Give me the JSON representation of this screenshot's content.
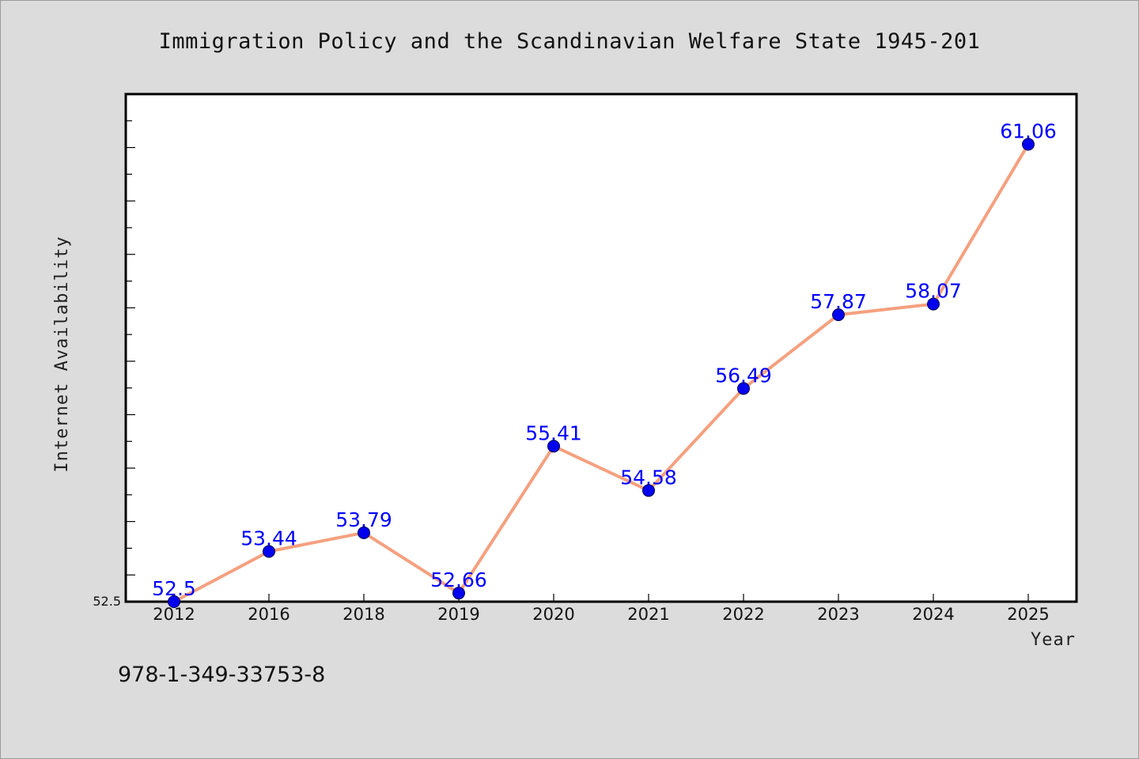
{
  "chart_data": {
    "type": "line",
    "title": "Immigration Policy and the Scandinavian Welfare State 1945-201",
    "xlabel": "Year",
    "ylabel": "Internet Availability",
    "categories": [
      "2012",
      "2016",
      "2018",
      "2019",
      "2020",
      "2021",
      "2022",
      "2023",
      "2024",
      "2025"
    ],
    "series": [
      {
        "values": [
          52.5,
          53.44,
          53.79,
          52.66,
          55.41,
          54.58,
          56.49,
          57.87,
          58.07,
          61.06
        ],
        "labels": [
          "52.5",
          "53.44",
          "53.79",
          "52.66",
          "55.41",
          "54.58",
          "56.49",
          "57.87",
          "58.07",
          "61.06"
        ]
      }
    ],
    "ylim": [
      52.5,
      62.0
    ],
    "yticks_labeled": [
      "52.5"
    ],
    "grid": false,
    "legend": "none",
    "colors": {
      "line": "#f5a07f",
      "marker": "#0000ee",
      "data_label": "#0000ff",
      "background": "#dcdcdc",
      "plot_background": "#ffffff"
    }
  },
  "footer": {
    "isbn": "978-1-349-33753-8"
  }
}
